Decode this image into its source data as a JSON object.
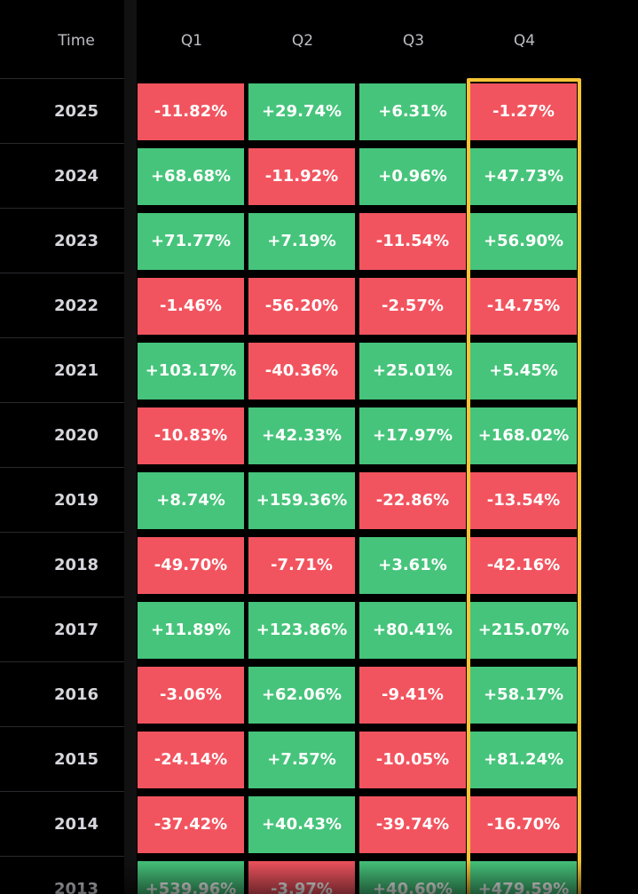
{
  "header": {
    "time_label": "Time"
  },
  "colors": {
    "positive": "#46c47b",
    "negative": "#f2545f",
    "highlight": "#f5c334",
    "background": "#000000"
  },
  "chart_data": {
    "type": "heatmap",
    "x_categories": [
      "Q1",
      "Q2",
      "Q3",
      "Q4"
    ],
    "highlighted_column": "Q4",
    "rows": [
      {
        "year": "2025",
        "cells": [
          "-11.82%",
          "+29.74%",
          "+6.31%",
          "-1.27%"
        ]
      },
      {
        "year": "2024",
        "cells": [
          "+68.68%",
          "-11.92%",
          "+0.96%",
          "+47.73%"
        ]
      },
      {
        "year": "2023",
        "cells": [
          "+71.77%",
          "+7.19%",
          "-11.54%",
          "+56.90%"
        ]
      },
      {
        "year": "2022",
        "cells": [
          "-1.46%",
          "-56.20%",
          "-2.57%",
          "-14.75%"
        ]
      },
      {
        "year": "2021",
        "cells": [
          "+103.17%",
          "-40.36%",
          "+25.01%",
          "+5.45%"
        ]
      },
      {
        "year": "2020",
        "cells": [
          "-10.83%",
          "+42.33%",
          "+17.97%",
          "+168.02%"
        ]
      },
      {
        "year": "2019",
        "cells": [
          "+8.74%",
          "+159.36%",
          "-22.86%",
          "-13.54%"
        ]
      },
      {
        "year": "2018",
        "cells": [
          "-49.70%",
          "-7.71%",
          "+3.61%",
          "-42.16%"
        ]
      },
      {
        "year": "2017",
        "cells": [
          "+11.89%",
          "+123.86%",
          "+80.41%",
          "+215.07%"
        ]
      },
      {
        "year": "2016",
        "cells": [
          "-3.06%",
          "+62.06%",
          "-9.41%",
          "+58.17%"
        ]
      },
      {
        "year": "2015",
        "cells": [
          "-24.14%",
          "+7.57%",
          "-10.05%",
          "+81.24%"
        ]
      },
      {
        "year": "2014",
        "cells": [
          "-37.42%",
          "+40.43%",
          "-39.74%",
          "-16.70%"
        ]
      },
      {
        "year": "2013",
        "cells": [
          "+539.96%",
          "-3.97%",
          "+40.60%",
          "+479.59%"
        ]
      }
    ]
  }
}
